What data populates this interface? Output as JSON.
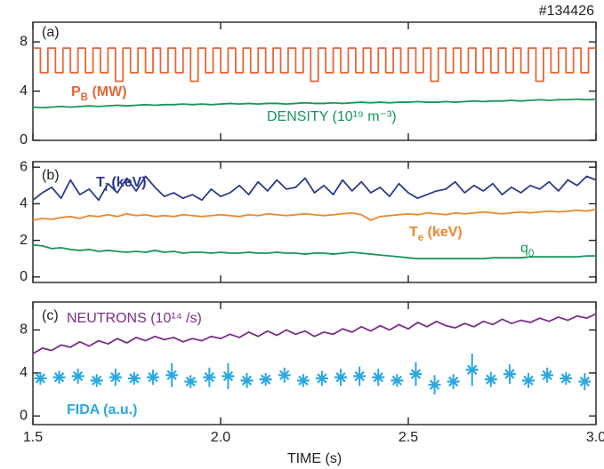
{
  "chart_data": [
    {
      "type": "line",
      "title": "#134426",
      "panel_label": "(a)",
      "xlim": [
        1.5,
        3.0
      ],
      "xticks": [
        1.5,
        2,
        2.5,
        3
      ],
      "ylim": [
        0,
        9.6
      ],
      "yticks": [
        0,
        4,
        8
      ],
      "series": [
        {
          "name": "P_B (MW)",
          "color": "#e4673a",
          "step": true,
          "x": [
            1.5,
            1.52,
            1.54,
            1.56,
            1.58,
            1.6,
            1.62,
            1.64,
            1.66,
            1.68,
            1.7,
            1.72,
            1.74,
            1.76,
            1.78,
            1.8,
            1.82,
            1.84,
            1.86,
            1.88,
            1.9,
            1.92,
            1.94,
            1.96,
            1.98,
            2.0,
            2.02,
            2.04,
            2.06,
            2.08,
            2.1,
            2.12,
            2.14,
            2.16,
            2.18,
            2.2,
            2.22,
            2.24,
            2.26,
            2.28,
            2.3,
            2.32,
            2.34,
            2.36,
            2.38,
            2.4,
            2.42,
            2.44,
            2.46,
            2.48,
            2.5,
            2.52,
            2.54,
            2.56,
            2.58,
            2.6,
            2.62,
            2.64,
            2.66,
            2.68,
            2.7,
            2.72,
            2.74,
            2.76,
            2.78,
            2.8,
            2.82,
            2.84,
            2.86,
            2.88,
            2.9,
            2.92,
            2.94,
            2.96,
            2.98,
            3.0
          ],
          "values": [
            7.5,
            5.5,
            7.5,
            5.5,
            7.5,
            5.5,
            7.5,
            5.5,
            7.5,
            5.5,
            7.5,
            4.8,
            7.5,
            5.5,
            7.5,
            5.5,
            7.5,
            5.5,
            7.5,
            5.5,
            7.5,
            4.8,
            7.5,
            5.5,
            7.5,
            5.5,
            7.5,
            5.5,
            7.5,
            5.5,
            7.5,
            5.5,
            7.5,
            5.5,
            7.5,
            5.5,
            7.5,
            4.8,
            7.5,
            5.5,
            7.5,
            5.5,
            7.5,
            5.5,
            7.5,
            5.5,
            7.5,
            5.5,
            7.5,
            5.5,
            7.5,
            5.5,
            7.5,
            4.8,
            7.5,
            5.5,
            7.5,
            5.5,
            7.5,
            5.5,
            7.5,
            5.5,
            7.5,
            5.5,
            7.5,
            5.5,
            7.5,
            4.8,
            7.5,
            5.5,
            7.5,
            5.5,
            7.5,
            5.5,
            7.5,
            7.5
          ]
        },
        {
          "name": "DENSITY (10¹⁹ m⁻³)",
          "color": "#16955a",
          "x": [
            1.5,
            1.525,
            1.55,
            1.575,
            1.6,
            1.625,
            1.65,
            1.675,
            1.7,
            1.725,
            1.75,
            1.775,
            1.8,
            1.825,
            1.85,
            1.875,
            1.9,
            1.925,
            1.95,
            1.975,
            2.0,
            2.025,
            2.05,
            2.075,
            2.1,
            2.125,
            2.15,
            2.175,
            2.2,
            2.225,
            2.25,
            2.275,
            2.3,
            2.325,
            2.35,
            2.375,
            2.4,
            2.425,
            2.45,
            2.475,
            2.5,
            2.525,
            2.55,
            2.575,
            2.6,
            2.625,
            2.65,
            2.675,
            2.7,
            2.725,
            2.75,
            2.775,
            2.8,
            2.825,
            2.85,
            2.875,
            2.9,
            2.925,
            2.95,
            2.975,
            3.0
          ],
          "values": [
            2.7,
            2.65,
            2.7,
            2.75,
            2.7,
            2.75,
            2.8,
            2.75,
            2.8,
            2.85,
            2.8,
            2.85,
            2.9,
            2.85,
            2.9,
            2.9,
            2.95,
            2.9,
            2.95,
            2.9,
            2.95,
            3.0,
            2.95,
            3.0,
            2.95,
            3.0,
            3.0,
            2.95,
            3.0,
            3.05,
            3.0,
            3.0,
            3.05,
            3.0,
            3.05,
            3.1,
            3.05,
            3.1,
            3.05,
            3.1,
            3.1,
            3.15,
            3.1,
            3.1,
            3.15,
            3.1,
            3.15,
            3.2,
            3.15,
            3.2,
            3.2,
            3.25,
            3.2,
            3.25,
            3.3,
            3.25,
            3.3,
            3.3,
            3.35,
            3.3,
            3.35
          ]
        }
      ]
    },
    {
      "type": "line",
      "panel_label": "(b)",
      "xlim": [
        1.5,
        3.0
      ],
      "xticks": [
        1.5,
        2,
        2.5,
        3
      ],
      "ylim": [
        -0.3,
        6.3
      ],
      "yticks": [
        0,
        2,
        4,
        6
      ],
      "series": [
        {
          "name": "T_i (keV)",
          "color": "#2b3a8c",
          "x": [
            1.5,
            1.525,
            1.55,
            1.575,
            1.6,
            1.625,
            1.65,
            1.675,
            1.7,
            1.725,
            1.75,
            1.775,
            1.8,
            1.825,
            1.85,
            1.875,
            1.9,
            1.925,
            1.95,
            1.975,
            2.0,
            2.025,
            2.05,
            2.075,
            2.1,
            2.125,
            2.15,
            2.175,
            2.2,
            2.225,
            2.25,
            2.275,
            2.3,
            2.325,
            2.35,
            2.375,
            2.4,
            2.425,
            2.45,
            2.475,
            2.5,
            2.525,
            2.55,
            2.575,
            2.6,
            2.625,
            2.65,
            2.675,
            2.7,
            2.725,
            2.75,
            2.775,
            2.8,
            2.825,
            2.85,
            2.875,
            2.9,
            2.925,
            2.95,
            2.975,
            3.0
          ],
          "values": [
            4.2,
            4.6,
            4.9,
            4.3,
            5.3,
            4.5,
            4.8,
            4.2,
            5.1,
            4.6,
            5.4,
            4.7,
            5.5,
            4.9,
            4.4,
            4.6,
            4.3,
            4.5,
            4.2,
            4.8,
            4.4,
            4.6,
            5.0,
            4.5,
            5.2,
            4.7,
            5.3,
            4.8,
            4.9,
            5.4,
            4.6,
            5.0,
            4.5,
            5.3,
            4.7,
            5.2,
            4.6,
            4.9,
            4.4,
            5.1,
            4.6,
            4.3,
            4.5,
            4.7,
            4.8,
            5.2,
            4.6,
            5.0,
            4.7,
            5.1,
            4.5,
            4.9,
            4.6,
            5.0,
            4.8,
            5.2,
            4.7,
            5.3,
            5.0,
            5.5,
            5.3
          ]
        },
        {
          "name": "T_e (keV)",
          "color": "#e8892a",
          "x": [
            1.5,
            1.525,
            1.55,
            1.575,
            1.6,
            1.625,
            1.65,
            1.675,
            1.7,
            1.725,
            1.75,
            1.775,
            1.8,
            1.825,
            1.85,
            1.875,
            1.9,
            1.925,
            1.95,
            1.975,
            2.0,
            2.025,
            2.05,
            2.075,
            2.1,
            2.125,
            2.15,
            2.175,
            2.2,
            2.225,
            2.25,
            2.275,
            2.3,
            2.325,
            2.35,
            2.375,
            2.4,
            2.425,
            2.45,
            2.475,
            2.5,
            2.525,
            2.55,
            2.575,
            2.6,
            2.625,
            2.65,
            2.675,
            2.7,
            2.725,
            2.75,
            2.775,
            2.8,
            2.825,
            2.85,
            2.875,
            2.9,
            2.925,
            2.95,
            2.975,
            3.0
          ],
          "values": [
            3.1,
            3.2,
            3.15,
            3.25,
            3.3,
            3.2,
            3.35,
            3.3,
            3.4,
            3.3,
            3.45,
            3.35,
            3.4,
            3.3,
            3.35,
            3.3,
            3.4,
            3.35,
            3.3,
            3.35,
            3.4,
            3.35,
            3.3,
            3.4,
            3.35,
            3.45,
            3.4,
            3.35,
            3.4,
            3.45,
            3.4,
            3.35,
            3.4,
            3.45,
            3.5,
            3.4,
            3.1,
            3.3,
            3.35,
            3.4,
            3.45,
            3.4,
            3.5,
            3.45,
            3.4,
            3.5,
            3.45,
            3.5,
            3.55,
            3.5,
            3.45,
            3.5,
            3.55,
            3.5,
            3.55,
            3.6,
            3.55,
            3.6,
            3.65,
            3.6,
            3.7
          ]
        },
        {
          "name": "q_0",
          "color": "#16955a",
          "x": [
            1.5,
            1.525,
            1.55,
            1.575,
            1.6,
            1.625,
            1.65,
            1.675,
            1.7,
            1.725,
            1.75,
            1.775,
            1.8,
            1.825,
            1.85,
            1.875,
            1.9,
            1.925,
            1.95,
            1.975,
            2.0,
            2.025,
            2.05,
            2.075,
            2.1,
            2.125,
            2.15,
            2.175,
            2.2,
            2.225,
            2.25,
            2.275,
            2.3,
            2.325,
            2.35,
            2.375,
            2.4,
            2.425,
            2.45,
            2.475,
            2.5,
            2.525,
            2.55,
            2.575,
            2.6,
            2.625,
            2.65,
            2.675,
            2.7,
            2.725,
            2.75,
            2.775,
            2.8,
            2.825,
            2.85,
            2.875,
            2.9,
            2.925,
            2.95,
            2.975,
            3.0
          ],
          "values": [
            1.75,
            1.7,
            1.55,
            1.6,
            1.5,
            1.45,
            1.5,
            1.4,
            1.45,
            1.4,
            1.35,
            1.4,
            1.35,
            1.45,
            1.35,
            1.4,
            1.3,
            1.35,
            1.35,
            1.3,
            1.35,
            1.3,
            1.3,
            1.35,
            1.3,
            1.3,
            1.35,
            1.3,
            1.3,
            1.25,
            1.3,
            1.3,
            1.25,
            1.3,
            1.35,
            1.3,
            1.25,
            1.2,
            1.15,
            1.1,
            1.05,
            1.0,
            1.0,
            1.0,
            1.0,
            1.0,
            1.0,
            1.0,
            1.0,
            1.05,
            1.05,
            1.05,
            1.05,
            1.1,
            1.1,
            1.1,
            1.1,
            1.1,
            1.1,
            1.15,
            1.15
          ]
        }
      ]
    },
    {
      "type": "line",
      "panel_label": "(c)",
      "xlabel": "TIME (s)",
      "xlim": [
        1.5,
        3.0
      ],
      "xticks": [
        {
          "value": 1.5,
          "label": "1.5"
        },
        {
          "value": 2,
          "label": "2.0"
        },
        {
          "value": 2.5,
          "label": "2.5"
        },
        {
          "value": 3,
          "label": "3.0"
        }
      ],
      "ylim": [
        -0.8,
        10.6
      ],
      "yticks": [
        0,
        4,
        8
      ],
      "series": [
        {
          "name": "NEUTRONS (10¹⁴ /s)",
          "color": "#7a2f86",
          "x": [
            1.5,
            1.525,
            1.55,
            1.575,
            1.6,
            1.625,
            1.65,
            1.675,
            1.7,
            1.725,
            1.75,
            1.775,
            1.8,
            1.825,
            1.85,
            1.875,
            1.9,
            1.925,
            1.95,
            1.975,
            2.0,
            2.025,
            2.05,
            2.075,
            2.1,
            2.125,
            2.15,
            2.175,
            2.2,
            2.225,
            2.25,
            2.275,
            2.3,
            2.325,
            2.35,
            2.375,
            2.4,
            2.425,
            2.45,
            2.475,
            2.5,
            2.525,
            2.55,
            2.575,
            2.6,
            2.625,
            2.65,
            2.675,
            2.7,
            2.725,
            2.75,
            2.775,
            2.8,
            2.825,
            2.85,
            2.875,
            2.9,
            2.925,
            2.95,
            2.975,
            3.0
          ],
          "values": [
            5.8,
            6.3,
            6.1,
            6.6,
            6.4,
            6.9,
            6.5,
            7.0,
            6.7,
            7.2,
            6.8,
            7.3,
            7.0,
            7.4,
            7.1,
            7.3,
            6.9,
            7.2,
            7.0,
            7.4,
            7.2,
            7.6,
            7.3,
            7.8,
            7.4,
            7.9,
            7.5,
            8.0,
            7.6,
            7.9,
            7.4,
            7.8,
            7.6,
            8.1,
            7.8,
            8.3,
            7.9,
            8.4,
            8.0,
            8.5,
            8.1,
            8.7,
            8.3,
            8.8,
            8.4,
            8.2,
            8.6,
            8.3,
            8.8,
            8.5,
            9.0,
            8.6,
            8.9,
            8.7,
            9.1,
            8.8,
            9.2,
            8.9,
            9.3,
            9.1,
            9.5
          ]
        },
        {
          "name": "FIDA (a.u.)",
          "color": "#2aa8e0",
          "marker": "asterisk",
          "x": [
            1.52,
            1.57,
            1.62,
            1.67,
            1.72,
            1.77,
            1.82,
            1.87,
            1.92,
            1.97,
            2.02,
            2.07,
            2.12,
            2.17,
            2.22,
            2.27,
            2.32,
            2.37,
            2.42,
            2.47,
            2.52,
            2.57,
            2.62,
            2.67,
            2.72,
            2.77,
            2.82,
            2.87,
            2.92,
            2.97
          ],
          "values": [
            3.5,
            3.6,
            3.7,
            3.3,
            3.6,
            3.5,
            3.6,
            3.8,
            3.2,
            3.6,
            3.7,
            3.3,
            3.4,
            3.8,
            3.3,
            3.5,
            3.6,
            3.7,
            3.6,
            3.3,
            3.9,
            2.9,
            3.2,
            4.3,
            3.4,
            3.9,
            3.3,
            3.8,
            3.5,
            3.2
          ],
          "errors": [
            0.6,
            0.6,
            0.7,
            0.6,
            0.8,
            0.6,
            0.7,
            1.1,
            0.6,
            0.9,
            1.2,
            0.7,
            0.6,
            0.7,
            0.6,
            0.7,
            0.8,
            0.9,
            0.8,
            0.6,
            1.1,
            0.9,
            0.7,
            1.5,
            0.7,
            0.9,
            0.7,
            0.7,
            0.6,
            0.8
          ]
        }
      ]
    }
  ]
}
